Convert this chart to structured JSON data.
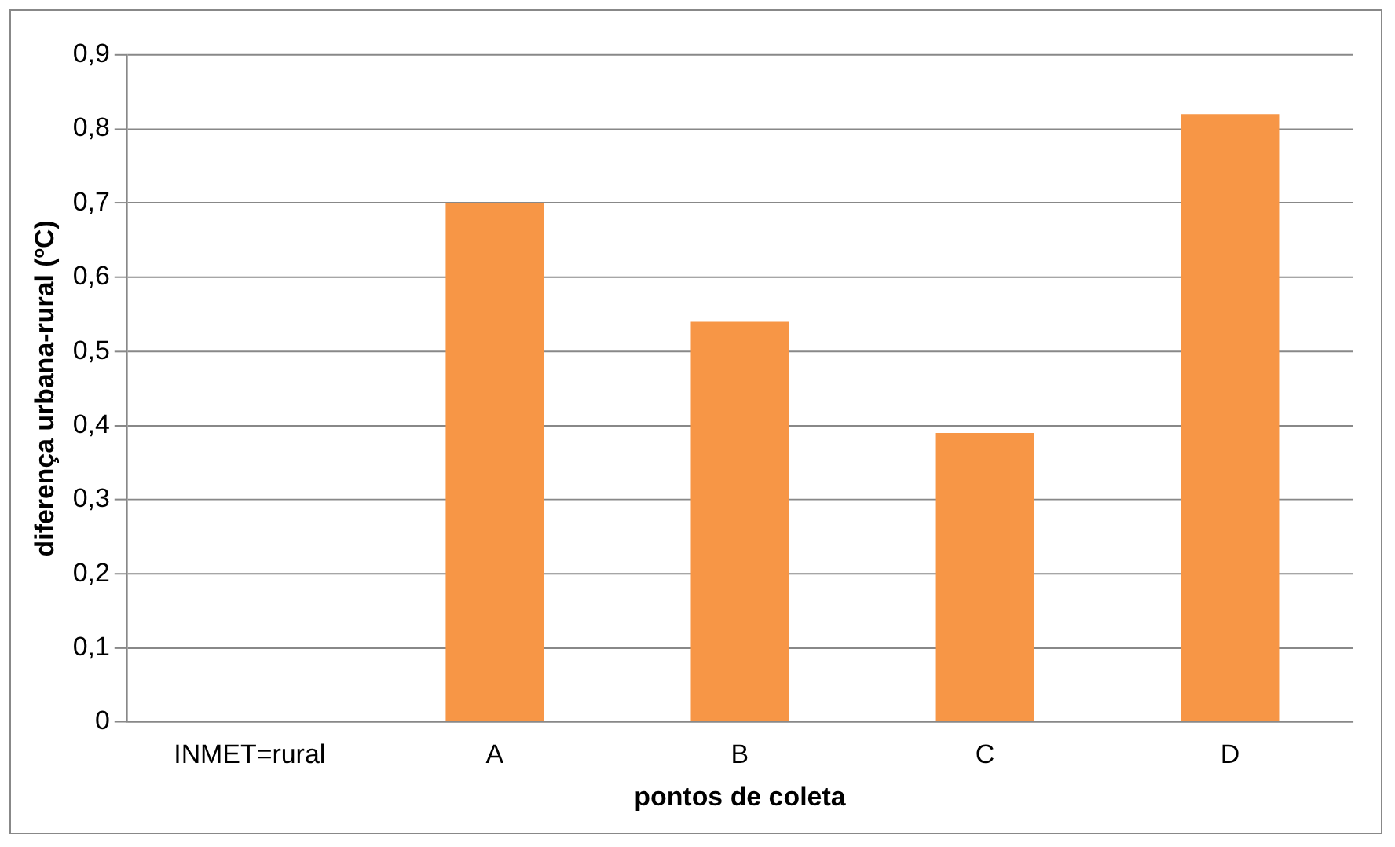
{
  "chart_data": {
    "type": "bar",
    "xlabel": "pontos de coleta",
    "ylabel": "diferença urbana-rural (ºC)",
    "categories": [
      "INMET=rural",
      "A",
      "B",
      "C",
      "D"
    ],
    "values": [
      0,
      0.7,
      0.54,
      0.39,
      0.82
    ],
    "color": "#f79646",
    "ylim": [
      0,
      0.9
    ],
    "yticks": [
      0,
      {
        "value": 0.1,
        "label": "0,1"
      },
      {
        "value": 0.2,
        "label": "0,2"
      },
      {
        "value": 0.3,
        "label": "0,3"
      },
      {
        "value": 0.4,
        "label": "0,4"
      },
      {
        "value": 0.5,
        "label": "0,5"
      },
      {
        "value": 0.6,
        "label": "0,6"
      },
      {
        "value": 0.7,
        "label": "0,7"
      },
      {
        "value": 0.8,
        "label": "0,8"
      },
      {
        "value": 0.9,
        "label": "0,9"
      }
    ],
    "grid": "y",
    "legend": false
  }
}
